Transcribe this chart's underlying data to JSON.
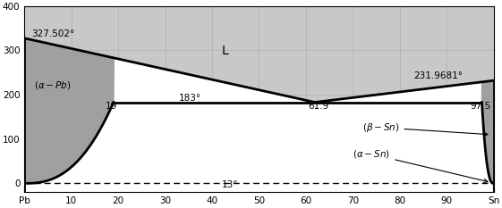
{
  "xlim": [
    0,
    100
  ],
  "ylim": [
    -20,
    400
  ],
  "xticks": [
    0,
    10,
    20,
    30,
    40,
    50,
    60,
    70,
    80,
    90,
    100
  ],
  "xticklabels": [
    "Pb",
    "10",
    "20",
    "30",
    "40",
    "50",
    "60",
    "70",
    "80",
    "90",
    "Sn"
  ],
  "yticks": [
    0,
    100,
    200,
    300,
    400
  ],
  "light_gray": "#c8c8c8",
  "dark_gray": "#a0a0a0",
  "white": "#ffffff",
  "line_color": "#000000",
  "grid_color": "#b0b0b0",
  "eutectic_T": 183,
  "pb_melt": 327.502,
  "sn_melt": 231.9681,
  "eut_comp": 61.9,
  "alpha_max": 19,
  "beta_min": 97.5,
  "figsize": [
    5.61,
    2.33
  ],
  "dpi": 100
}
